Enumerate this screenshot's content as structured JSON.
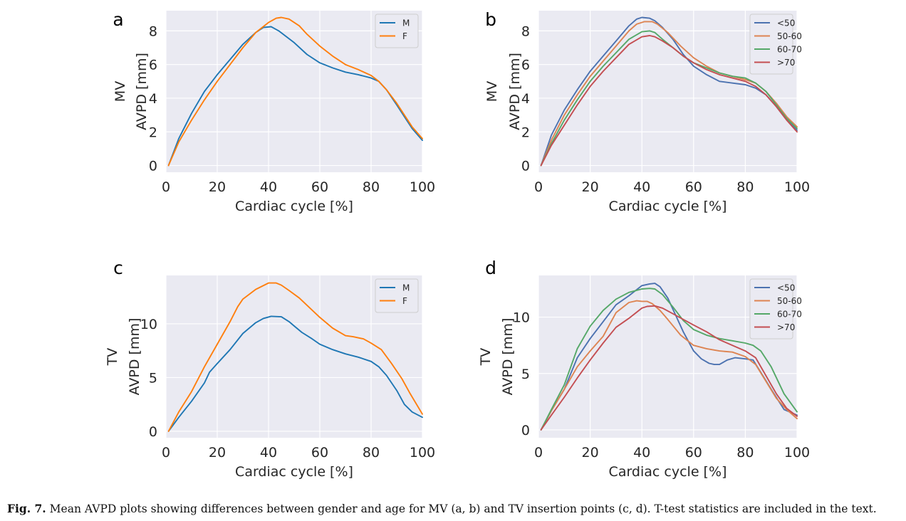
{
  "caption": {
    "label": "Fig. 7.",
    "text": "Mean AVPD plots showing differences between gender and age for MV (a, b) and TV insertion points (c, d). T-test statistics are included in the text."
  },
  "colors": {
    "plot_bg": "#eaeaf2",
    "grid": "#ffffff",
    "blue": "#4c72b0",
    "orange": "#dd8452",
    "green": "#55a868",
    "red": "#c44e52",
    "mpl_blue": "#1f77b4",
    "mpl_orange": "#ff7f0e"
  },
  "chart_data": [
    {
      "panel": "a",
      "type": "line",
      "xlabel": "Cardiac cycle [%]",
      "ylabel": "AVPD [mm]",
      "ylabel_prefix": "MV",
      "xlim": [
        0,
        100
      ],
      "ylim": [
        -0.4,
        9.2
      ],
      "xticks": [
        0,
        20,
        40,
        60,
        80,
        100
      ],
      "yticks": [
        0,
        2,
        4,
        6,
        8
      ],
      "legend_position": "top-right",
      "series": [
        {
          "name": "M",
          "color": "#1f77b4",
          "x": [
            1,
            5,
            10,
            15,
            20,
            25,
            30,
            35,
            38,
            41,
            44,
            50,
            55,
            60,
            65,
            70,
            75,
            80,
            83,
            86,
            90,
            93,
            96,
            100
          ],
          "y": [
            0,
            1.6,
            3.1,
            4.4,
            5.4,
            6.3,
            7.2,
            7.9,
            8.2,
            8.25,
            8.0,
            7.3,
            6.6,
            6.1,
            5.8,
            5.55,
            5.4,
            5.2,
            5.0,
            4.5,
            3.6,
            2.9,
            2.2,
            1.5
          ]
        },
        {
          "name": "F",
          "color": "#ff7f0e",
          "x": [
            1,
            5,
            10,
            15,
            20,
            25,
            30,
            35,
            40,
            43,
            45,
            48,
            52,
            55,
            60,
            65,
            70,
            75,
            80,
            83,
            86,
            90,
            93,
            96,
            100
          ],
          "y": [
            0,
            1.4,
            2.7,
            3.9,
            5.0,
            6.0,
            7.0,
            7.9,
            8.5,
            8.75,
            8.8,
            8.7,
            8.3,
            7.8,
            7.1,
            6.5,
            6.0,
            5.7,
            5.35,
            5.0,
            4.5,
            3.7,
            3.0,
            2.3,
            1.6
          ]
        }
      ]
    },
    {
      "panel": "b",
      "type": "line",
      "xlabel": "Cardiac cycle [%]",
      "ylabel": "AVPD [mm]",
      "ylabel_prefix": "MV",
      "xlim": [
        0,
        100
      ],
      "ylim": [
        -0.4,
        9.2
      ],
      "xticks": [
        0,
        20,
        40,
        60,
        80,
        100
      ],
      "yticks": [
        0,
        2,
        4,
        6,
        8
      ],
      "legend_position": "top-right",
      "series": [
        {
          "name": "<50",
          "color": "#4c72b0",
          "x": [
            1,
            5,
            10,
            15,
            20,
            25,
            30,
            35,
            38,
            40,
            43,
            45,
            48,
            52,
            56,
            60,
            65,
            70,
            75,
            80,
            84,
            88,
            92,
            96,
            100
          ],
          "y": [
            0,
            1.8,
            3.3,
            4.5,
            5.6,
            6.5,
            7.4,
            8.3,
            8.7,
            8.8,
            8.75,
            8.6,
            8.2,
            7.5,
            6.6,
            5.9,
            5.4,
            5.0,
            4.9,
            4.8,
            4.6,
            4.2,
            3.5,
            2.7,
            2.1
          ]
        },
        {
          "name": "50-60",
          "color": "#dd8452",
          "x": [
            1,
            5,
            10,
            15,
            20,
            25,
            30,
            35,
            38,
            41,
            44,
            46,
            50,
            55,
            60,
            65,
            70,
            75,
            80,
            84,
            88,
            92,
            96,
            100
          ],
          "y": [
            0,
            1.5,
            3.0,
            4.2,
            5.3,
            6.2,
            7.1,
            8.0,
            8.4,
            8.55,
            8.55,
            8.4,
            7.9,
            7.1,
            6.4,
            5.9,
            5.5,
            5.3,
            5.1,
            4.9,
            4.4,
            3.7,
            2.9,
            2.3
          ]
        },
        {
          "name": "60-70",
          "color": "#55a868",
          "x": [
            1,
            5,
            10,
            15,
            20,
            25,
            30,
            35,
            40,
            43,
            45,
            48,
            52,
            56,
            60,
            65,
            70,
            75,
            80,
            84,
            88,
            92,
            96,
            100
          ],
          "y": [
            0,
            1.3,
            2.7,
            3.9,
            5.0,
            5.9,
            6.7,
            7.5,
            7.95,
            8.0,
            7.9,
            7.5,
            7.0,
            6.5,
            6.1,
            5.8,
            5.5,
            5.3,
            5.2,
            4.9,
            4.4,
            3.6,
            2.8,
            2.2
          ]
        },
        {
          "name": ">70",
          "color": "#c44e52",
          "x": [
            1,
            5,
            10,
            15,
            20,
            25,
            30,
            35,
            40,
            43,
            45,
            48,
            52,
            56,
            60,
            65,
            70,
            75,
            80,
            84,
            88,
            92,
            96,
            100
          ],
          "y": [
            0,
            1.2,
            2.4,
            3.6,
            4.7,
            5.6,
            6.4,
            7.2,
            7.65,
            7.72,
            7.65,
            7.4,
            7.0,
            6.5,
            6.1,
            5.7,
            5.4,
            5.2,
            5.0,
            4.7,
            4.2,
            3.5,
            2.7,
            2.0
          ]
        }
      ]
    },
    {
      "panel": "c",
      "type": "line",
      "xlabel": "Cardiac cycle [%]",
      "ylabel": "AVPD [mm]",
      "ylabel_prefix": "TV",
      "xlim": [
        0,
        100
      ],
      "ylim": [
        -0.6,
        14.5
      ],
      "xticks": [
        0,
        20,
        40,
        60,
        80,
        100
      ],
      "yticks": [
        0,
        5,
        10
      ],
      "legend_position": "top-right",
      "series": [
        {
          "name": "M",
          "color": "#1f77b4",
          "x": [
            1,
            5,
            10,
            15,
            17,
            20,
            25,
            30,
            35,
            38,
            41,
            45,
            48,
            50,
            53,
            57,
            60,
            65,
            70,
            75,
            80,
            83,
            86,
            90,
            93,
            96,
            100
          ],
          "y": [
            0,
            1.3,
            2.8,
            4.5,
            5.5,
            6.3,
            7.6,
            9.1,
            10.1,
            10.5,
            10.7,
            10.65,
            10.2,
            9.8,
            9.2,
            8.6,
            8.1,
            7.6,
            7.2,
            6.9,
            6.5,
            6.0,
            5.2,
            3.8,
            2.5,
            1.8,
            1.3
          ]
        },
        {
          "name": "F",
          "color": "#ff7f0e",
          "x": [
            1,
            5,
            10,
            15,
            20,
            25,
            28,
            30,
            35,
            40,
            43,
            45,
            48,
            52,
            56,
            60,
            65,
            70,
            73,
            77,
            80,
            84,
            88,
            92,
            95,
            100
          ],
          "y": [
            0,
            1.8,
            3.7,
            6.0,
            8.1,
            10.2,
            11.6,
            12.3,
            13.2,
            13.8,
            13.8,
            13.6,
            13.1,
            12.4,
            11.5,
            10.6,
            9.6,
            8.9,
            8.8,
            8.6,
            8.2,
            7.6,
            6.3,
            4.9,
            3.6,
            1.6
          ]
        }
      ]
    },
    {
      "panel": "d",
      "type": "line",
      "xlabel": "Cardiac cycle [%]",
      "ylabel": "AVPD [mm]",
      "ylabel_prefix": "TV",
      "xlim": [
        0,
        100
      ],
      "ylim": [
        -0.7,
        13.7
      ],
      "xticks": [
        0,
        20,
        40,
        60,
        80,
        100
      ],
      "yticks": [
        0,
        5,
        10
      ],
      "legend_position": "top-right",
      "series": [
        {
          "name": "<50",
          "color": "#4c72b0",
          "x": [
            1,
            5,
            10,
            15,
            20,
            25,
            30,
            35,
            40,
            43,
            45,
            47,
            50,
            53,
            56,
            60,
            63,
            66,
            68,
            70,
            73,
            76,
            80,
            83,
            86,
            90,
            95,
            100
          ],
          "y": [
            0,
            1.7,
            3.6,
            6.4,
            8.1,
            9.6,
            11.1,
            11.9,
            12.8,
            12.95,
            13.0,
            12.7,
            11.7,
            10.2,
            8.7,
            7.0,
            6.3,
            5.9,
            5.8,
            5.8,
            6.2,
            6.4,
            6.3,
            6.2,
            5.1,
            3.6,
            1.8,
            1.3
          ]
        },
        {
          "name": "50-60",
          "color": "#dd8452",
          "x": [
            1,
            5,
            10,
            15,
            20,
            25,
            30,
            35,
            38,
            40,
            42,
            44,
            47,
            50,
            55,
            60,
            65,
            70,
            75,
            80,
            84,
            88,
            92,
            96,
            100
          ],
          "y": [
            0,
            1.7,
            3.6,
            5.6,
            7.0,
            8.3,
            10.4,
            11.3,
            11.45,
            11.4,
            11.4,
            11.2,
            10.6,
            9.8,
            8.4,
            7.5,
            7.2,
            7.0,
            6.9,
            6.5,
            5.8,
            4.3,
            2.8,
            1.8,
            1.0
          ]
        },
        {
          "name": "60-70",
          "color": "#55a868",
          "x": [
            1,
            5,
            10,
            15,
            20,
            25,
            30,
            35,
            40,
            43,
            45,
            48,
            52,
            56,
            60,
            65,
            70,
            75,
            80,
            83,
            86,
            90,
            95,
            100
          ],
          "y": [
            0,
            1.8,
            4.0,
            7.2,
            9.2,
            10.6,
            11.6,
            12.2,
            12.5,
            12.55,
            12.5,
            12.0,
            10.9,
            9.7,
            8.9,
            8.4,
            8.1,
            7.9,
            7.7,
            7.5,
            7.0,
            5.6,
            3.2,
            1.6
          ]
        },
        {
          "name": ">70",
          "color": "#c44e52",
          "x": [
            1,
            5,
            10,
            15,
            20,
            25,
            30,
            35,
            40,
            42,
            45,
            48,
            52,
            56,
            60,
            65,
            70,
            75,
            80,
            84,
            88,
            92,
            96,
            100
          ],
          "y": [
            0,
            1.3,
            2.9,
            4.6,
            6.2,
            7.7,
            9.1,
            9.9,
            10.8,
            10.95,
            11.0,
            10.8,
            10.3,
            9.8,
            9.3,
            8.7,
            8.0,
            7.5,
            7.0,
            6.4,
            4.8,
            3.2,
            1.9,
            1.2
          ]
        }
      ]
    }
  ]
}
